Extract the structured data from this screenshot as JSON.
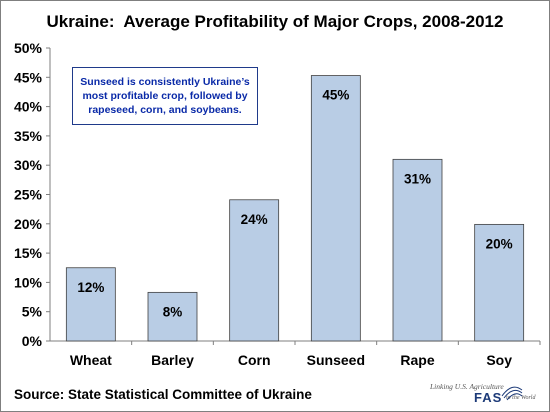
{
  "chart_data": {
    "type": "bar",
    "title": "Ukraine:  Average Profitability of Major Crops, 2008-2012",
    "categories": [
      "Wheat",
      "Barley",
      "Corn",
      "Sunseed",
      "Rape",
      "Soy"
    ],
    "values": [
      12.5,
      8.3,
      24.1,
      45.3,
      31.0,
      19.9
    ],
    "data_labels": [
      "12%",
      "8%",
      "24%",
      "45%",
      "31%",
      "20%"
    ],
    "ylim": [
      0,
      50
    ],
    "yticks": [
      "0%",
      "5%",
      "10%",
      "15%",
      "20%",
      "25%",
      "30%",
      "35%",
      "40%",
      "45%",
      "50%"
    ],
    "grid": false,
    "bar_color": "#b9cde5",
    "bar_edge_color": "#404040"
  },
  "annotation": {
    "lines": [
      "Sunseed is consistently Ukraine’s",
      "most profitable crop, followed by",
      "rapeseed, corn, and soybeans."
    ],
    "text_color": "#0a2aa8",
    "border_color": "#1f3a8a"
  },
  "source": "Source:  State Statistical Committee of Ukraine",
  "logo": {
    "tagline": "Linking U.S. Agriculture",
    "name": "FAS",
    "tagline_tail": "to the World"
  }
}
